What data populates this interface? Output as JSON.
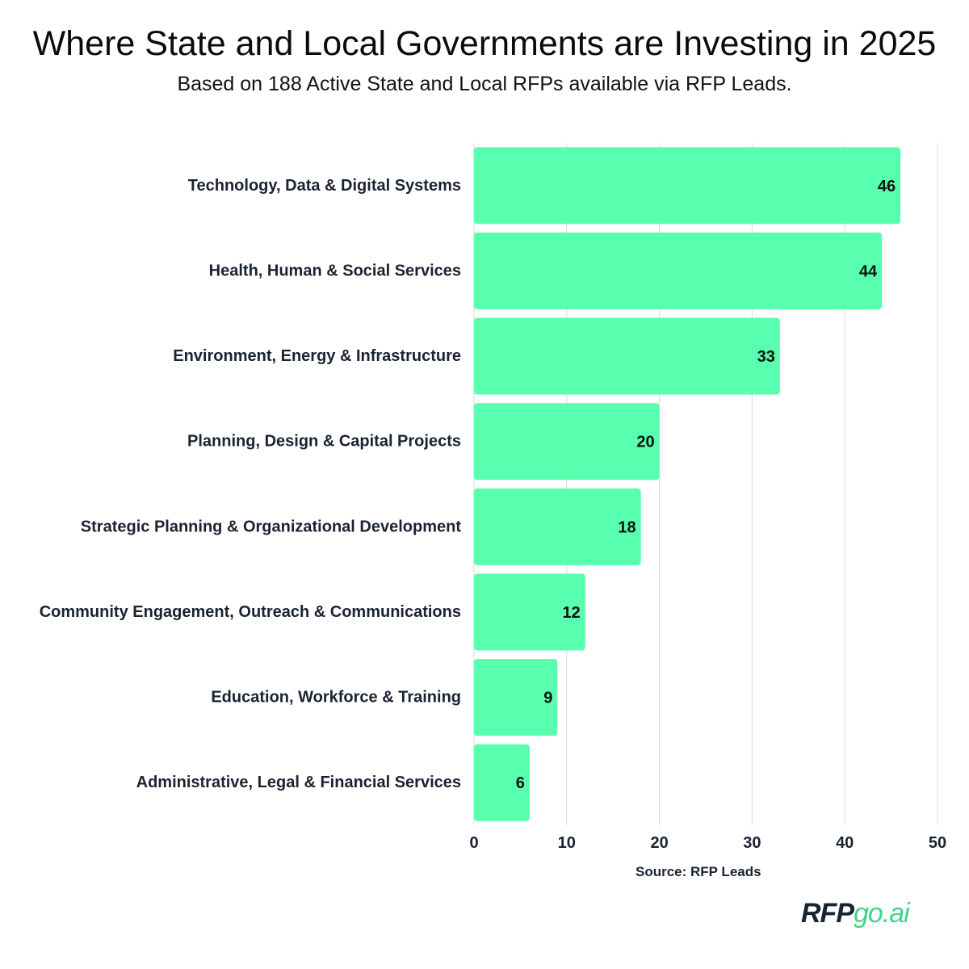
{
  "chart_data": {
    "type": "bar",
    "orientation": "horizontal",
    "title": "Where State and Local Governments are Investing in 2025",
    "subtitle": "Based on 188 Active State and Local RFPs available via RFP Leads.",
    "categories": [
      "Technology, Data & Digital Systems",
      "Health, Human & Social Services",
      "Environment, Energy & Infrastructure",
      "Planning, Design & Capital Projects",
      "Strategic Planning & Organizational Development",
      "Community Engagement, Outreach & Communications",
      "Education, Workforce & Training",
      "Administrative, Legal & Financial Services"
    ],
    "values": [
      46,
      44,
      33,
      20,
      18,
      12,
      9,
      6
    ],
    "xlim": [
      0,
      50
    ],
    "xticks": [
      0,
      10,
      20,
      30,
      40,
      50
    ],
    "grid": "vertical",
    "data_labels": true,
    "bar_color": "#57ffae",
    "gridline_color": "#d9d9d9"
  },
  "source": "Source: RFP Leads",
  "brand": {
    "part1": "RFP",
    "part2": "go.ai",
    "color_primary": "#1a2332",
    "color_accent": "#3fd48a"
  }
}
